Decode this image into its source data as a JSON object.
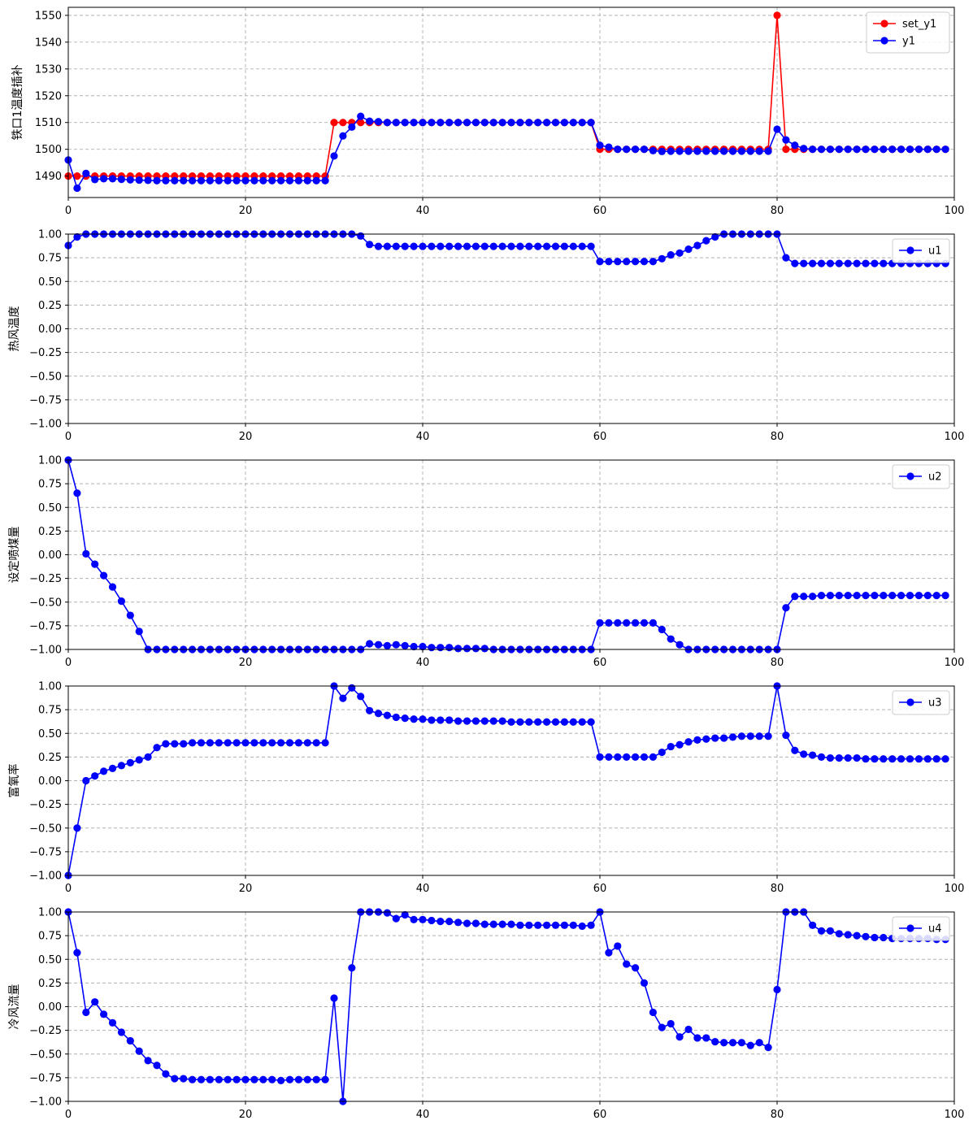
{
  "colors": {
    "red": "#ff0000",
    "blue": "#0000ff",
    "grid": "#b0b0b0",
    "axis": "#000000"
  },
  "chart_data": [
    {
      "type": "line",
      "ylabel": "铁口1温度插补",
      "xlim": [
        0,
        100
      ],
      "ylim": [
        1482,
        1553
      ],
      "xticks": [
        0,
        20,
        40,
        60,
        80,
        100
      ],
      "yticks": [
        1490,
        1500,
        1510,
        1520,
        1530,
        1540,
        1550
      ],
      "legend": "top-right",
      "series": [
        {
          "name": "set_y1",
          "color": "#ff0000",
          "values": [
            1490,
            1490,
            1490,
            1490,
            1490,
            1490,
            1490,
            1490,
            1490,
            1490,
            1490,
            1490,
            1490,
            1490,
            1490,
            1490,
            1490,
            1490,
            1490,
            1490,
            1490,
            1490,
            1490,
            1490,
            1490,
            1490,
            1490,
            1490,
            1490,
            1490,
            1510,
            1510,
            1510,
            1510,
            1510,
            1510,
            1510,
            1510,
            1510,
            1510,
            1510,
            1510,
            1510,
            1510,
            1510,
            1510,
            1510,
            1510,
            1510,
            1510,
            1510,
            1510,
            1510,
            1510,
            1510,
            1510,
            1510,
            1510,
            1510,
            1510,
            1500,
            1500,
            1500,
            1500,
            1500,
            1500,
            1500,
            1500,
            1500,
            1500,
            1500,
            1500,
            1500,
            1500,
            1500,
            1500,
            1500,
            1500,
            1500,
            1500,
            1550,
            1500,
            1500,
            1500,
            1500,
            1500,
            1500,
            1500,
            1500,
            1500,
            1500,
            1500,
            1500,
            1500,
            1500,
            1500,
            1500,
            1500,
            1500,
            1500
          ]
        },
        {
          "name": "y1",
          "color": "#0000ff",
          "values": [
            1496,
            1485.5,
            1491,
            1488.7,
            1489,
            1489,
            1488.8,
            1488.6,
            1488.5,
            1488.4,
            1488.3,
            1488.3,
            1488.3,
            1488.3,
            1488.3,
            1488.3,
            1488.3,
            1488.3,
            1488.3,
            1488.3,
            1488.3,
            1488.3,
            1488.3,
            1488.3,
            1488.3,
            1488.3,
            1488.3,
            1488.3,
            1488.3,
            1488.3,
            1497.5,
            1505,
            1508.3,
            1512.3,
            1510.5,
            1510.3,
            1510,
            1510,
            1510,
            1510,
            1510,
            1510,
            1510,
            1510,
            1510,
            1510,
            1510,
            1510,
            1510,
            1510,
            1510,
            1510,
            1510,
            1510,
            1510,
            1510,
            1510,
            1510,
            1510,
            1510,
            1501.5,
            1500.8,
            1500,
            1500,
            1500,
            1500,
            1499.5,
            1499.2,
            1499.3,
            1499.3,
            1499.3,
            1499.3,
            1499.3,
            1499.3,
            1499.3,
            1499.3,
            1499.3,
            1499.3,
            1499.3,
            1499.3,
            1507.5,
            1503.5,
            1501.5,
            1500.3,
            1500,
            1500,
            1500,
            1500,
            1500,
            1500,
            1500,
            1500,
            1500,
            1500,
            1500,
            1500,
            1500,
            1500,
            1500,
            1500
          ]
        }
      ]
    },
    {
      "type": "line",
      "ylabel": "热风温度",
      "xlim": [
        0,
        100
      ],
      "ylim": [
        -1,
        1
      ],
      "xticks": [
        0,
        20,
        40,
        60,
        80,
        100
      ],
      "yticks": [
        -1.0,
        -0.75,
        -0.5,
        -0.25,
        0.0,
        0.25,
        0.5,
        0.75,
        1.0
      ],
      "legend": "top-right",
      "series": [
        {
          "name": "u1",
          "color": "#0000ff",
          "values": [
            0.88,
            0.97,
            1,
            1,
            1,
            1,
            1,
            1,
            1,
            1,
            1,
            1,
            1,
            1,
            1,
            1,
            1,
            1,
            1,
            1,
            1,
            1,
            1,
            1,
            1,
            1,
            1,
            1,
            1,
            1,
            1,
            1,
            1,
            0.98,
            0.89,
            0.87,
            0.87,
            0.87,
            0.87,
            0.87,
            0.87,
            0.87,
            0.87,
            0.87,
            0.87,
            0.87,
            0.87,
            0.87,
            0.87,
            0.87,
            0.87,
            0.87,
            0.87,
            0.87,
            0.87,
            0.87,
            0.87,
            0.87,
            0.87,
            0.87,
            0.71,
            0.71,
            0.71,
            0.71,
            0.71,
            0.71,
            0.71,
            0.74,
            0.78,
            0.8,
            0.84,
            0.88,
            0.93,
            0.97,
            1,
            1,
            1,
            1,
            1,
            1,
            1,
            0.75,
            0.69,
            0.69,
            0.69,
            0.69,
            0.69,
            0.69,
            0.69,
            0.69,
            0.69,
            0.69,
            0.69,
            0.69,
            0.69,
            0.69,
            0.69,
            0.69,
            0.69,
            0.69
          ]
        }
      ]
    },
    {
      "type": "line",
      "ylabel": "设定喷煤量",
      "xlim": [
        0,
        100
      ],
      "ylim": [
        -1,
        1
      ],
      "xticks": [
        0,
        20,
        40,
        60,
        80,
        100
      ],
      "yticks": [
        -1.0,
        -0.75,
        -0.5,
        -0.25,
        0.0,
        0.25,
        0.5,
        0.75,
        1.0
      ],
      "legend": "top-right",
      "series": [
        {
          "name": "u2",
          "color": "#0000ff",
          "values": [
            1,
            0.65,
            0.01,
            -0.1,
            -0.22,
            -0.34,
            -0.49,
            -0.64,
            -0.81,
            -1,
            -1,
            -1,
            -1,
            -1,
            -1,
            -1,
            -1,
            -1,
            -1,
            -1,
            -1,
            -1,
            -1,
            -1,
            -1,
            -1,
            -1,
            -1,
            -1,
            -1,
            -1,
            -1,
            -1,
            -1,
            -0.94,
            -0.95,
            -0.96,
            -0.95,
            -0.96,
            -0.97,
            -0.97,
            -0.98,
            -0.98,
            -0.98,
            -0.99,
            -0.99,
            -0.99,
            -0.99,
            -1,
            -1,
            -1,
            -1,
            -1,
            -1,
            -1,
            -1,
            -1,
            -1,
            -1,
            -1,
            -0.72,
            -0.72,
            -0.72,
            -0.72,
            -0.72,
            -0.72,
            -0.72,
            -0.79,
            -0.89,
            -0.95,
            -1,
            -1,
            -1,
            -1,
            -1,
            -1,
            -1,
            -1,
            -1,
            -1,
            -1,
            -0.56,
            -0.44,
            -0.44,
            -0.44,
            -0.43,
            -0.43,
            -0.43,
            -0.43,
            -0.43,
            -0.43,
            -0.43,
            -0.43,
            -0.43,
            -0.43,
            -0.43,
            -0.43,
            -0.43,
            -0.43,
            -0.43
          ]
        }
      ]
    },
    {
      "type": "line",
      "ylabel": "富氧率",
      "xlim": [
        0,
        100
      ],
      "ylim": [
        -1,
        1
      ],
      "xticks": [
        0,
        20,
        40,
        60,
        80,
        100
      ],
      "yticks": [
        -1.0,
        -0.75,
        -0.5,
        -0.25,
        0.0,
        0.25,
        0.5,
        0.75,
        1.0
      ],
      "legend": "top-right",
      "series": [
        {
          "name": "u3",
          "color": "#0000ff",
          "values": [
            -1,
            -0.5,
            0,
            0.05,
            0.1,
            0.13,
            0.16,
            0.19,
            0.22,
            0.25,
            0.35,
            0.39,
            0.39,
            0.39,
            0.4,
            0.4,
            0.4,
            0.4,
            0.4,
            0.4,
            0.4,
            0.4,
            0.4,
            0.4,
            0.4,
            0.4,
            0.4,
            0.4,
            0.4,
            0.4,
            1,
            0.87,
            0.98,
            0.89,
            0.74,
            0.71,
            0.69,
            0.67,
            0.66,
            0.65,
            0.65,
            0.64,
            0.64,
            0.64,
            0.63,
            0.63,
            0.63,
            0.63,
            0.63,
            0.63,
            0.62,
            0.62,
            0.62,
            0.62,
            0.62,
            0.62,
            0.62,
            0.62,
            0.62,
            0.62,
            0.25,
            0.25,
            0.25,
            0.25,
            0.25,
            0.25,
            0.25,
            0.3,
            0.36,
            0.38,
            0.41,
            0.43,
            0.44,
            0.45,
            0.45,
            0.46,
            0.47,
            0.47,
            0.47,
            0.47,
            1,
            0.48,
            0.32,
            0.28,
            0.27,
            0.25,
            0.24,
            0.24,
            0.24,
            0.24,
            0.23,
            0.23,
            0.23,
            0.23,
            0.23,
            0.23,
            0.23,
            0.23,
            0.23,
            0.23
          ]
        }
      ]
    },
    {
      "type": "line",
      "ylabel": "冷风流量",
      "xlim": [
        0,
        100
      ],
      "ylim": [
        -1,
        1
      ],
      "xticks": [
        0,
        20,
        40,
        60,
        80,
        100
      ],
      "yticks": [
        -1.0,
        -0.75,
        -0.5,
        -0.25,
        0.0,
        0.25,
        0.5,
        0.75,
        1.0
      ],
      "legend": "top-right",
      "series": [
        {
          "name": "u4",
          "color": "#0000ff",
          "values": [
            1,
            0.57,
            -0.06,
            0.05,
            -0.08,
            -0.17,
            -0.27,
            -0.36,
            -0.47,
            -0.57,
            -0.62,
            -0.71,
            -0.76,
            -0.76,
            -0.77,
            -0.77,
            -0.77,
            -0.77,
            -0.77,
            -0.77,
            -0.77,
            -0.77,
            -0.77,
            -0.77,
            -0.78,
            -0.77,
            -0.77,
            -0.77,
            -0.77,
            -0.77,
            0.09,
            -1,
            0.41,
            1,
            1,
            1,
            0.99,
            0.93,
            0.97,
            0.92,
            0.92,
            0.91,
            0.9,
            0.9,
            0.89,
            0.88,
            0.88,
            0.87,
            0.87,
            0.87,
            0.87,
            0.86,
            0.86,
            0.86,
            0.86,
            0.86,
            0.86,
            0.86,
            0.85,
            0.86,
            1,
            0.57,
            0.64,
            0.45,
            0.41,
            0.25,
            -0.06,
            -0.22,
            -0.18,
            -0.32,
            -0.24,
            -0.33,
            -0.33,
            -0.37,
            -0.38,
            -0.38,
            -0.38,
            -0.41,
            -0.38,
            -0.43,
            0.18,
            1,
            1,
            1,
            0.86,
            0.8,
            0.8,
            0.77,
            0.76,
            0.75,
            0.74,
            0.73,
            0.73,
            0.72,
            0.72,
            0.72,
            0.72,
            0.72,
            0.71,
            0.71
          ]
        }
      ]
    }
  ]
}
